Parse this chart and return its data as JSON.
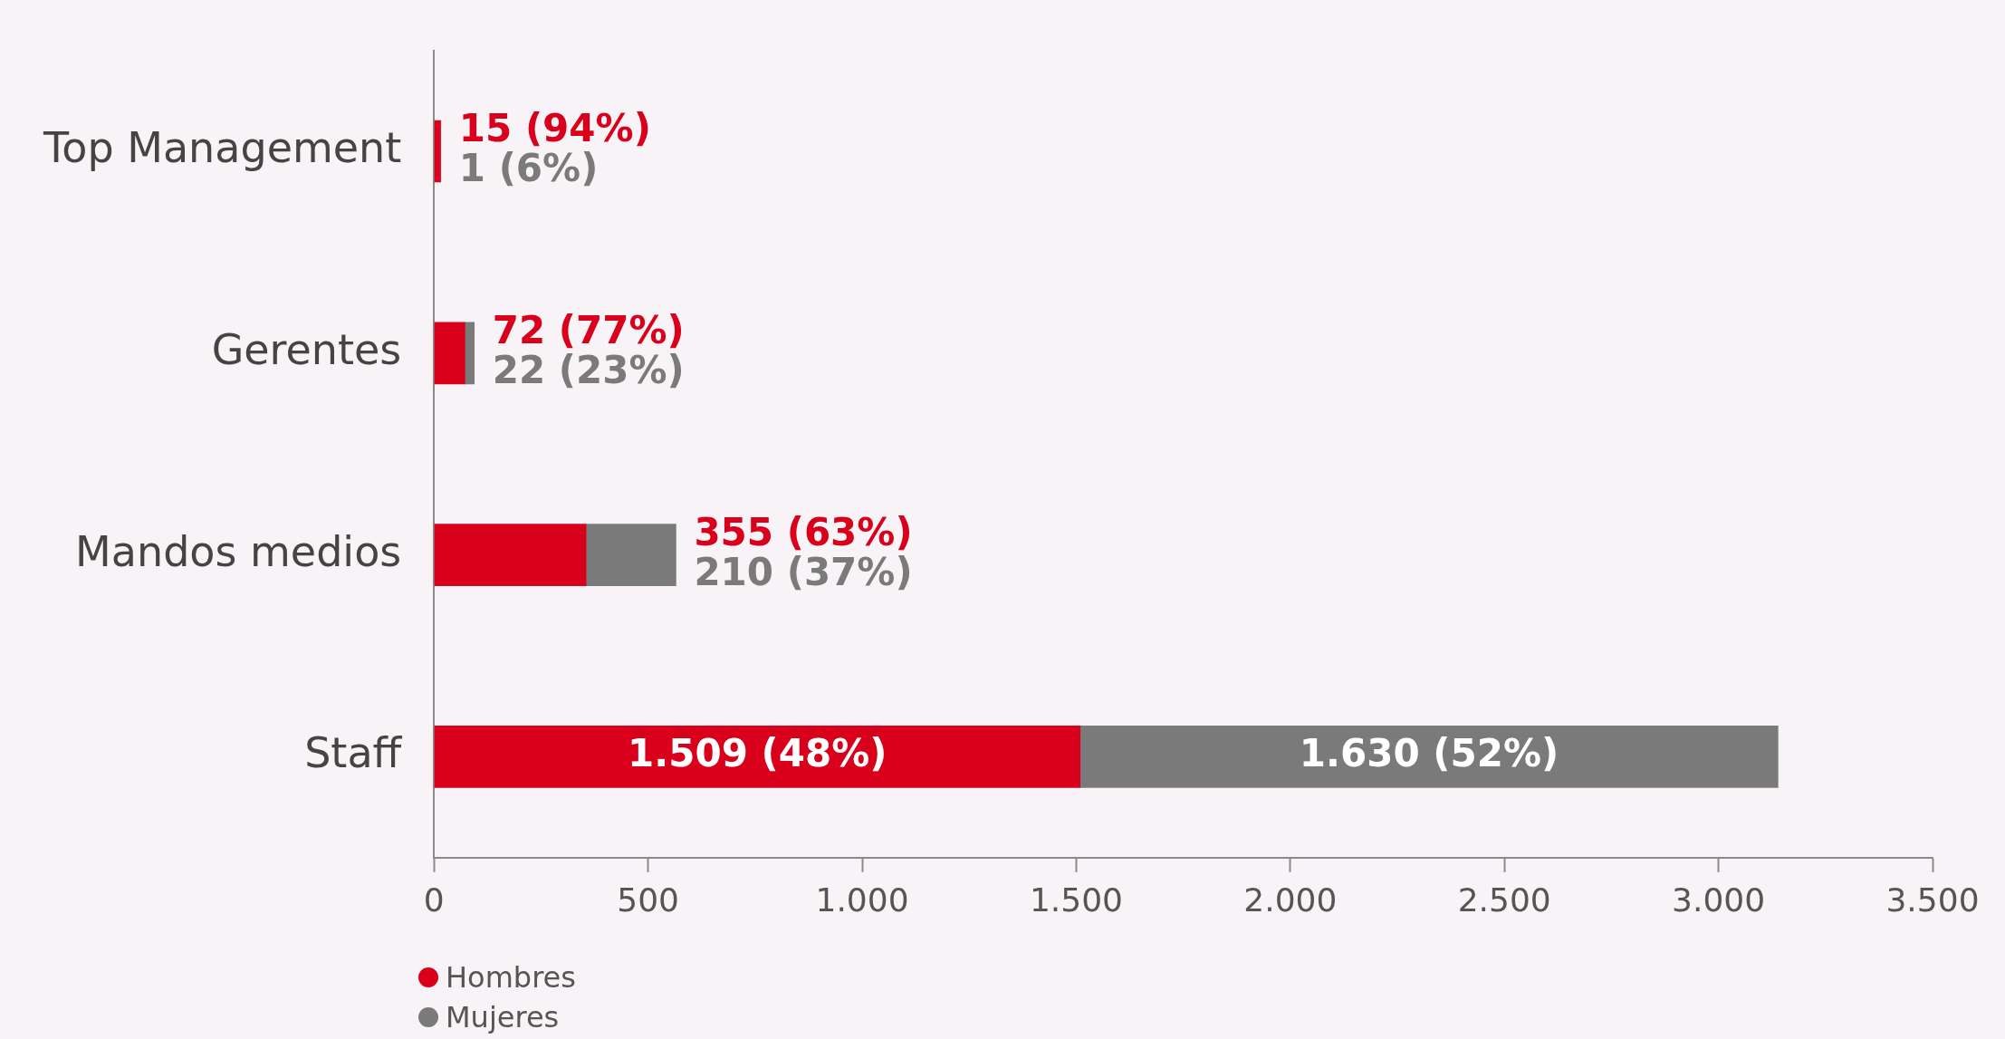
{
  "chart_data": {
    "type": "bar",
    "orientation": "horizontal",
    "stacked": true,
    "categories": [
      "Top Management",
      "Gerentes",
      "Mandos medios",
      "Staff"
    ],
    "series": [
      {
        "name": "Hombres",
        "color": "#d9001b",
        "values": [
          15,
          72,
          355,
          1509
        ],
        "value_labels": [
          "15 (94%)",
          "72 (77%)",
          "355 (63%)",
          "1.509 (48%)"
        ]
      },
      {
        "name": "Mujeres",
        "color": "#7a7a7a",
        "values": [
          1,
          22,
          210,
          1630
        ],
        "value_labels": [
          "1 (6%)",
          "22 (23%)",
          "210 (37%)",
          "1.630 (52%)"
        ]
      }
    ],
    "xlim": [
      0,
      3500
    ],
    "xticks": [
      0,
      500,
      {
        "value": 1000,
        "label": "1.000"
      },
      {
        "value": 1500,
        "label": "1.500"
      },
      {
        "value": 2000,
        "label": "2.000"
      },
      {
        "value": 2500,
        "label": "2.500"
      },
      {
        "value": 3000,
        "label": "3.000"
      },
      {
        "value": 3500,
        "label": "3.500"
      }
    ],
    "grid": false,
    "legend": "bottom left"
  }
}
